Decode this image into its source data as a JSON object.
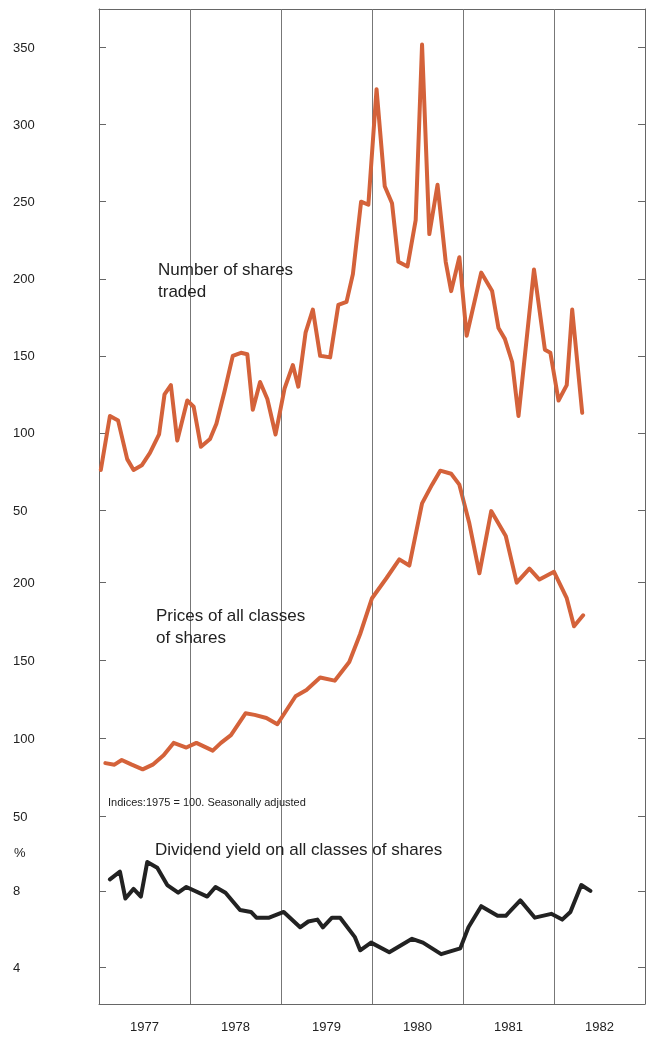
{
  "chart_data": [
    {
      "type": "line",
      "xlim": [
        1977,
        1983
      ],
      "ylim": [
        50,
        375
      ],
      "yticks": [
        50,
        100,
        150,
        200,
        250,
        300,
        350
      ],
      "tick_labels": "y",
      "grid": false,
      "legend": false,
      "marker": "none",
      "line_style": "solid",
      "ref_lines": [
        {
          "axis": "x",
          "value": 1978
        },
        {
          "axis": "x",
          "value": 1979
        },
        {
          "axis": "x",
          "value": 1980
        },
        {
          "axis": "x",
          "value": 1981
        },
        {
          "axis": "x",
          "value": 1982
        }
      ],
      "series": [
        {
          "name": "Number of shares traded",
          "color": "#d4623a",
          "x": [
            1977.02,
            1977.12,
            1977.21,
            1977.31,
            1977.38,
            1977.47,
            1977.56,
            1977.66,
            1977.72,
            1977.79,
            1977.86,
            1977.97,
            1978.04,
            1978.12,
            1978.22,
            1978.29,
            1978.38,
            1978.47,
            1978.56,
            1978.63,
            1978.69,
            1978.77,
            1978.85,
            1978.94,
            1979.04,
            1979.13,
            1979.19,
            1979.27,
            1979.35,
            1979.43,
            1979.54,
            1979.63,
            1979.72,
            1979.79,
            1979.88,
            1979.96,
            1980.05,
            1980.14,
            1980.22,
            1980.29,
            1980.39,
            1980.48,
            1980.55,
            1980.63,
            1980.72,
            1980.81,
            1980.87,
            1980.96,
            1981.04,
            1981.2,
            1981.32,
            1981.39,
            1981.46,
            1981.54,
            1981.61,
            1981.78,
            1981.9,
            1981.96,
            1982.05,
            1982.14,
            1982.2,
            1982.31
          ],
          "values": [
            76,
            111,
            108,
            83,
            76,
            79,
            87,
            99,
            125,
            131,
            95,
            121,
            117,
            91,
            96,
            106,
            127,
            150,
            152,
            151,
            115,
            133,
            122,
            99,
            129,
            144,
            130,
            165,
            180,
            150,
            149,
            183,
            185,
            203,
            250,
            248,
            323,
            260,
            249,
            211,
            208,
            238,
            352,
            229,
            261,
            211,
            192,
            214,
            163,
            204,
            192,
            168,
            161,
            146,
            111,
            206,
            154,
            152,
            121,
            131,
            180,
            113
          ]
        }
      ]
    },
    {
      "type": "line",
      "xlim": [
        1977,
        1983
      ],
      "ylim": [
        50,
        275
      ],
      "yticks": [
        50,
        100,
        150,
        200
      ],
      "tick_labels": "y",
      "grid": false,
      "legend": false,
      "marker": "none",
      "line_style": "solid",
      "annotations": [
        "Indices:1975 = 100. Seasonally adjusted"
      ],
      "ref_lines": [
        {
          "axis": "x",
          "value": 1978
        },
        {
          "axis": "x",
          "value": 1979
        },
        {
          "axis": "x",
          "value": 1980
        },
        {
          "axis": "x",
          "value": 1981
        },
        {
          "axis": "x",
          "value": 1982
        }
      ],
      "series": [
        {
          "name": "Prices of all classes of shares",
          "color": "#d4623a",
          "x": [
            1977.07,
            1977.17,
            1977.25,
            1977.36,
            1977.48,
            1977.59,
            1977.71,
            1977.82,
            1977.96,
            1978.07,
            1978.25,
            1978.34,
            1978.45,
            1978.61,
            1978.71,
            1978.84,
            1978.96,
            1979.16,
            1979.28,
            1979.43,
            1979.59,
            1979.75,
            1979.87,
            1980,
            1980.16,
            1980.3,
            1980.41,
            1980.55,
            1980.66,
            1980.75,
            1980.87,
            1980.96,
            1981.07,
            1981.18,
            1981.31,
            1981.47,
            1981.59,
            1981.73,
            1981.84,
            1982,
            1982.14,
            1982.22,
            1982.32
          ],
          "values": [
            84,
            83,
            86,
            83,
            80,
            83,
            89,
            97,
            94,
            97,
            92,
            97,
            102,
            116,
            115,
            113,
            109,
            127,
            131,
            139,
            137,
            149,
            167,
            190,
            203,
            215,
            211,
            251,
            263,
            272,
            270,
            263,
            238,
            206,
            246,
            230,
            200,
            209,
            202,
            207,
            190,
            172,
            179
          ]
        }
      ]
    },
    {
      "type": "line",
      "xlim": [
        1977,
        1983
      ],
      "xticks": [
        {
          "value": 1977.5,
          "label": "1977"
        },
        {
          "value": 1978.5,
          "label": "1978"
        },
        {
          "value": 1979.5,
          "label": "1979"
        },
        {
          "value": 1980.5,
          "label": "1980"
        },
        {
          "value": 1981.5,
          "label": "1981"
        },
        {
          "value": 1982.5,
          "label": "1982"
        }
      ],
      "ylim": [
        2.1,
        11.9
      ],
      "yticks": [
        4,
        8
      ],
      "ylabel": "%",
      "grid": false,
      "legend": false,
      "marker": "none",
      "line_style": "solid",
      "ref_lines": [
        {
          "axis": "x",
          "value": 1978
        },
        {
          "axis": "x",
          "value": 1979
        },
        {
          "axis": "x",
          "value": 1980
        },
        {
          "axis": "x",
          "value": 1981
        },
        {
          "axis": "x",
          "value": 1982
        }
      ],
      "series": [
        {
          "name": "Dividend yield on all classes of shares",
          "color": "#222222",
          "x": [
            1977.12,
            1977.23,
            1977.29,
            1977.38,
            1977.46,
            1977.53,
            1977.64,
            1977.75,
            1977.87,
            1977.96,
            1978.19,
            1978.28,
            1978.39,
            1978.55,
            1978.67,
            1978.73,
            1978.87,
            1979.03,
            1979.21,
            1979.3,
            1979.4,
            1979.46,
            1979.56,
            1979.65,
            1979.81,
            1979.87,
            1979.99,
            1980.19,
            1980.44,
            1980.56,
            1980.76,
            1980.97,
            1981.06,
            1981.2,
            1981.38,
            1981.47,
            1981.63,
            1981.79,
            1981.97,
            1982.09,
            1982.18,
            1982.3,
            1982.4
          ],
          "values": [
            8.6,
            9.0,
            7.6,
            8.1,
            7.7,
            9.5,
            9.2,
            8.3,
            7.9,
            8.2,
            7.7,
            8.2,
            7.9,
            7.0,
            6.9,
            6.6,
            6.6,
            6.9,
            6.1,
            6.4,
            6.5,
            6.1,
            6.6,
            6.6,
            5.6,
            4.9,
            5.3,
            4.8,
            5.5,
            5.3,
            4.7,
            5.0,
            6.1,
            7.2,
            6.7,
            6.7,
            7.5,
            6.6,
            6.8,
            6.5,
            6.9,
            8.3,
            8.0
          ]
        }
      ]
    }
  ]
}
